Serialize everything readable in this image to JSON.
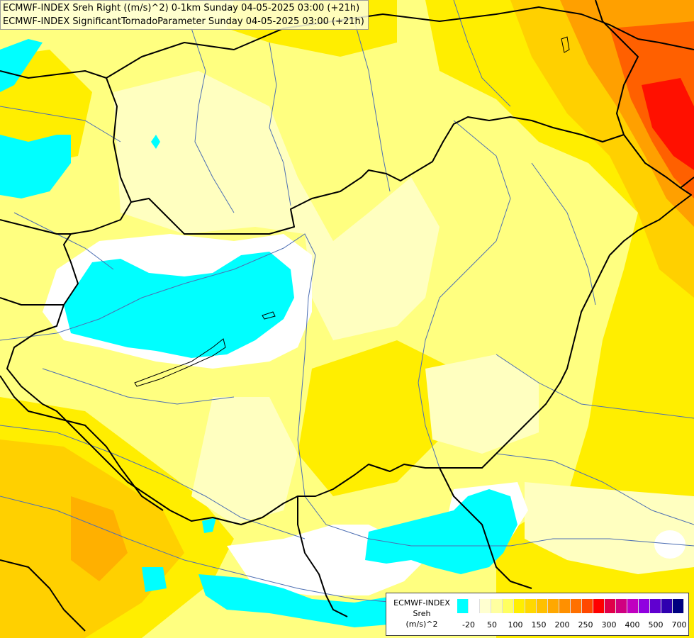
{
  "titles": {
    "line1": "ECMWF-INDEX Sreh Right ((m/s)^2) 0-1km Sunday 04-05-2025 03:00 (+21h)",
    "line2": "ECMWF-INDEX SignificantTornadoParameter Sunday 04-05-2025 03:00 (+21h)"
  },
  "legend": {
    "title_line1": "ECMWF-INDEX",
    "title_line2": "Sreh",
    "title_line3": "(m/s)^2",
    "colors": [
      "#00ffff",
      "#ffffff",
      "#ffffd0",
      "#ffffa0",
      "#ffff60",
      "#ffee00",
      "#ffd800",
      "#ffc000",
      "#ffa800",
      "#ff9000",
      "#ff7000",
      "#ff4800",
      "#ff0000",
      "#e0004a",
      "#d00080",
      "#c000c0",
      "#9000e0",
      "#6000d0",
      "#3000b0",
      "#000080"
    ],
    "ticks": [
      "-20",
      "50",
      "100",
      "150",
      "200",
      "250",
      "300",
      "400",
      "500",
      "700"
    ]
  },
  "palette": {
    "background": "#ffff80",
    "cyan": "#00ffff",
    "white": "#ffffff",
    "pale": "#ffffc0",
    "yellow": "#ffee00",
    "gold": "#ffd000",
    "orange": "#ffa000",
    "red_orange": "#ff6000",
    "red": "#ff0000",
    "border": "#000000",
    "river": "#4d6fb3"
  }
}
